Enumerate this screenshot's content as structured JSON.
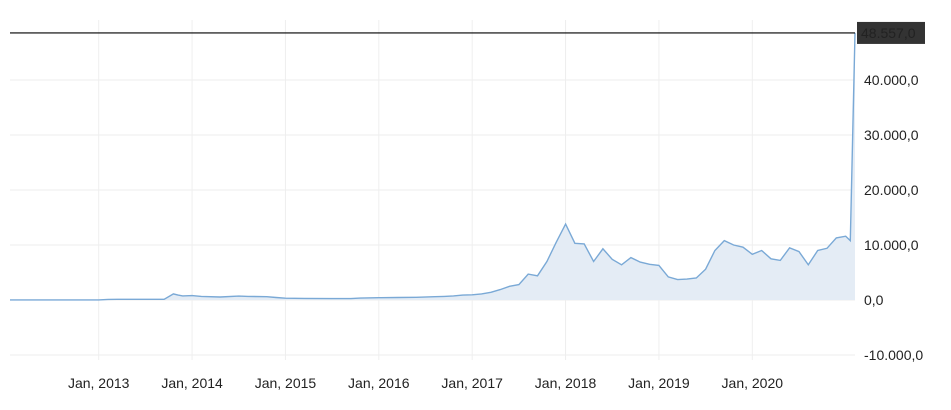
{
  "chart_data": {
    "type": "area",
    "title": "",
    "xlabel": "",
    "ylabel": "",
    "ylim": [
      -10000,
      48557
    ],
    "y_ticks": [
      "-10.000,0",
      "0,0",
      "10.000,0",
      "20.000,0",
      "30.000,0",
      "40.000,0"
    ],
    "y_tick_values": [
      -10000,
      0,
      10000,
      20000,
      30000,
      40000
    ],
    "x_ticks": [
      "Jan, 2013",
      "Jan, 2014",
      "Jan, 2015",
      "Jan, 2016",
      "Jan, 2017",
      "Jan, 2018",
      "Jan, 2019",
      "Jan, 2020"
    ],
    "x_tick_values": [
      2013,
      2014,
      2015,
      2016,
      2017,
      2018,
      2019,
      2020
    ],
    "x_range": [
      2012.05,
      2021.1
    ],
    "grid": true,
    "current_value": 48557,
    "current_value_label": "48.557,0",
    "colors": {
      "line": "#7aa9d6",
      "fill": "#e4ecf5",
      "reference_line": "#000000",
      "badge_bg": "#333333",
      "badge_text": "#ffffff"
    },
    "series": [
      {
        "x": [
          2012.05,
          2012.55,
          2013.0,
          2013.1,
          2013.2,
          2013.5,
          2013.7,
          2013.8,
          2013.85,
          2013.9,
          2014.0,
          2014.1,
          2014.3,
          2014.5,
          2014.6,
          2014.8,
          2014.9,
          2015.0,
          2015.2,
          2015.5,
          2015.7,
          2015.8,
          2016.0,
          2016.2,
          2016.4,
          2016.6,
          2016.7,
          2016.8,
          2016.9,
          2017.0,
          2017.1,
          2017.2,
          2017.3,
          2017.4,
          2017.5,
          2017.6,
          2017.7,
          2017.8,
          2017.9,
          2018.0,
          2018.1,
          2018.2,
          2018.3,
          2018.4,
          2018.5,
          2018.6,
          2018.7,
          2018.8,
          2018.9,
          2019.0,
          2019.1,
          2019.2,
          2019.3,
          2019.4,
          2019.5,
          2019.6,
          2019.7,
          2019.8,
          2019.9,
          2020.0,
          2020.1,
          2020.2,
          2020.3,
          2020.4,
          2020.5,
          2020.6,
          2020.7,
          2020.8,
          2020.9,
          2021.0,
          2021.05
        ],
        "values": [
          13,
          13,
          13,
          100,
          120,
          130,
          130,
          1100,
          900,
          750,
          800,
          650,
          550,
          700,
          650,
          600,
          450,
          320,
          300,
          250,
          250,
          350,
          420,
          450,
          500,
          600,
          650,
          750,
          900,
          950,
          1100,
          1400,
          1900,
          2500,
          2800,
          4700,
          4400,
          7000,
          10500,
          13800,
          10300,
          10200,
          7000,
          9300,
          7400,
          6400,
          7700,
          6900,
          6500,
          6300,
          4200,
          3700,
          3800,
          4000,
          5600,
          9000,
          10800,
          10000,
          9600,
          8300,
          9000,
          7500,
          7200,
          9500,
          8800,
          6400,
          9000,
          9400,
          11300,
          11600,
          10800
        ]
      }
    ],
    "series_tail": {
      "x": [
        2020.9,
        2020.95,
        2021.0,
        2021.05,
        2021.1
      ],
      "values": [
        14000,
        19500,
        29000,
        33000,
        48557
      ]
    }
  }
}
